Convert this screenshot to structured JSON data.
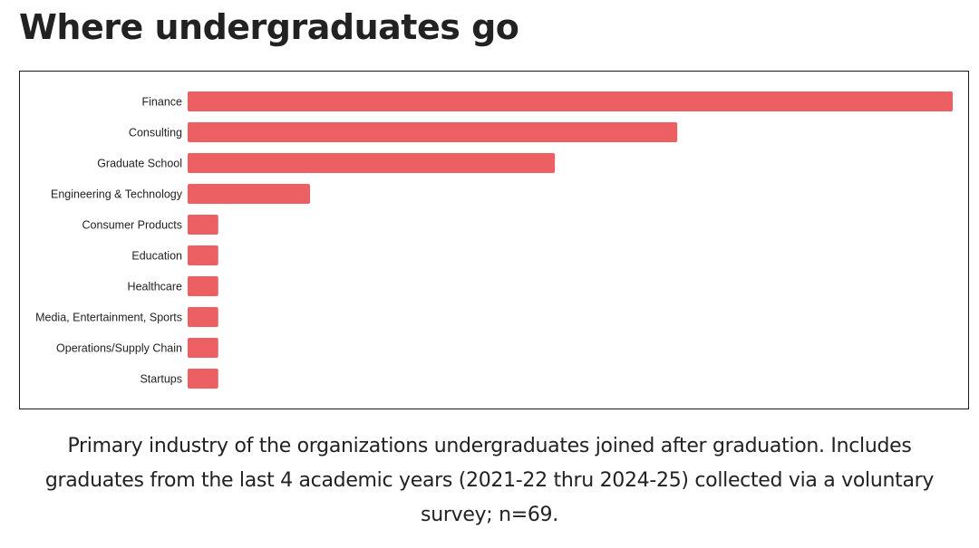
{
  "page": {
    "title": "Where undergraduates go",
    "caption": "Primary industry of the organizations undergraduates joined after graduation. Includes graduates from the last 4 academic years (2021-22 thru 2024-25) collected via a voluntary survey; n=69."
  },
  "colors": {
    "bar": "#ec5f63",
    "text": "#222222",
    "frame": "#1a1a1a"
  },
  "chart_data": {
    "type": "bar",
    "orientation": "horizontal",
    "title": "",
    "xlabel": "",
    "ylabel": "",
    "categories": [
      "Finance",
      "Consulting",
      "Graduate School",
      "Engineering & Technology",
      "Consumer Products",
      "Education",
      "Healthcare",
      "Media, Entertainment, Sports",
      "Operations/Supply Chain",
      "Startups"
    ],
    "values": [
      25,
      16,
      12,
      4,
      1,
      1,
      1,
      1,
      1,
      1
    ],
    "xlim": [
      0,
      25
    ],
    "grid": false,
    "legend": "none"
  }
}
